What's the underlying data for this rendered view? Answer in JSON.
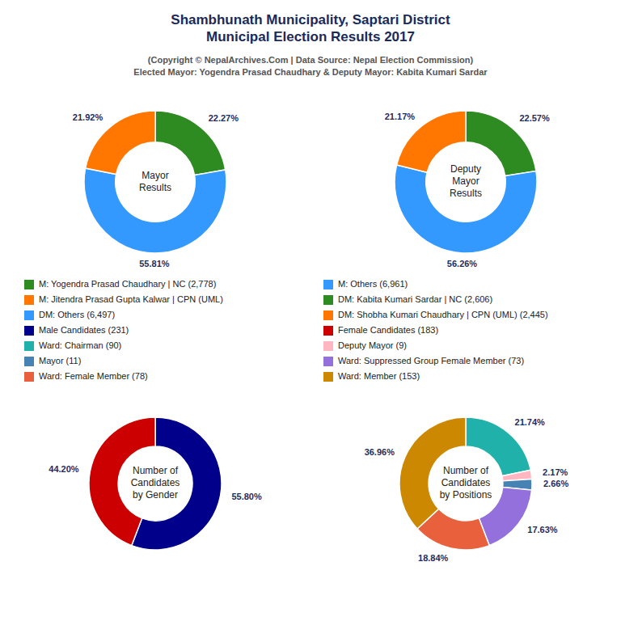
{
  "title": "Shambhunath Municipality, Saptari District\nMunicipal Election Results 2017",
  "subtitle": "(Copyright © NepalArchives.Com | Data Source: Nepal Election Commission)\nElected Mayor: Yogendra Prasad Chaudhary & Deputy Mayor: Kabita Kumari Sardar",
  "chart_data": [
    {
      "type": "pie",
      "title": "Mayor\nResults",
      "categories": [
        "M: Yogendra Prasad Chaudhary | NC (2,778)",
        "M: Others (6,961)",
        "M: Jitendra Prasad Gupta Kalwar | CPN (UML)"
      ],
      "values": [
        22.27,
        55.81,
        21.92
      ],
      "value_labels": [
        "22.27%",
        "55.81%",
        "21.92%"
      ],
      "colors": [
        "#2E8B22",
        "#3399FF",
        "#FF7700"
      ],
      "data_labels": true
    },
    {
      "type": "pie",
      "title": "Deputy\nMayor\nResults",
      "categories": [
        "DM: Kabita Kumari Sardar | NC (2,606)",
        "DM: Others (6,497)",
        "DM: Shobha Kumari Chaudhary | CPN (UML) (2,445)"
      ],
      "values": [
        22.57,
        56.26,
        21.17
      ],
      "value_labels": [
        "22.57%",
        "56.26%",
        "21.17%"
      ],
      "colors": [
        "#2E8B22",
        "#3399FF",
        "#FF7700"
      ],
      "data_labels": true
    },
    {
      "type": "pie",
      "title": "Number of\nCandidates\nby Gender",
      "categories": [
        "Male Candidates (231)",
        "Female Candidates (183)"
      ],
      "values": [
        55.8,
        44.2
      ],
      "value_labels": [
        "55.80%",
        "44.20%"
      ],
      "colors": [
        "#00008B",
        "#CC0000"
      ],
      "data_labels": true
    },
    {
      "type": "pie",
      "title": "Number of\nCandidates\nby Positions",
      "categories": [
        "Ward: Chairman (90)",
        "Deputy Mayor (9)",
        "Mayor (11)",
        "Ward: Suppressed Group Female Member (73)",
        "Ward: Female Member (78)",
        "Ward: Member (153)"
      ],
      "values": [
        21.74,
        2.17,
        2.66,
        17.63,
        18.84,
        36.96
      ],
      "value_labels": [
        "21.74%",
        "2.17%",
        "2.66%",
        "17.63%",
        "18.84%",
        "36.96%"
      ],
      "colors": [
        "#20B2AA",
        "#FFB6C1",
        "#4682B4",
        "#9370DB",
        "#E8603C",
        "#CC8800"
      ],
      "data_labels": true
    }
  ]
}
